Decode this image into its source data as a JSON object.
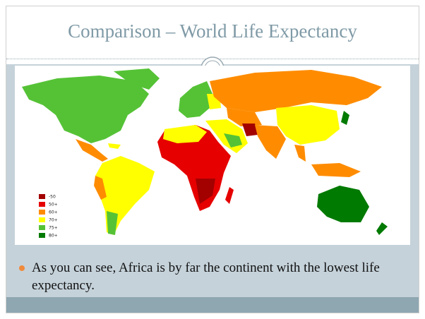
{
  "header": {
    "title": "Comparison – World Life Expectancy"
  },
  "map": {
    "legend": [
      {
        "label": "-50",
        "color": "#a30000"
      },
      {
        "label": "50+",
        "color": "#e60000"
      },
      {
        "label": "60+",
        "color": "#ff8c00"
      },
      {
        "label": "70+",
        "color": "#ffff00"
      },
      {
        "label": "75+",
        "color": "#55c236"
      },
      {
        "label": "80+",
        "color": "#007a00"
      }
    ]
  },
  "bullets": [
    "As you can see, Africa is by far the continent with the lowest life expectancy."
  ]
}
